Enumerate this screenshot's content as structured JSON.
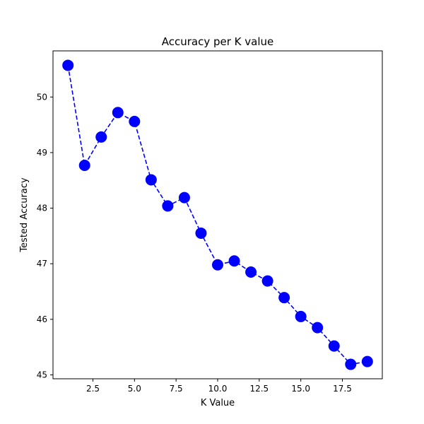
{
  "chart_data": {
    "type": "line",
    "title": "Accuracy per K value",
    "xlabel": "K Value",
    "ylabel": "Tested Accuracy",
    "xlim": [
      0.1,
      19.9
    ],
    "ylim": [
      44.93,
      50.83
    ],
    "xticks": [
      2.5,
      5.0,
      7.5,
      10.0,
      12.5,
      15.0,
      17.5
    ],
    "xtick_labels": [
      "2.5",
      "5.0",
      "7.5",
      "10.0",
      "12.5",
      "15.0",
      "17.5"
    ],
    "yticks": [
      45,
      46,
      47,
      48,
      49,
      50
    ],
    "ytick_labels": [
      "45",
      "46",
      "47",
      "48",
      "49",
      "50"
    ],
    "grid": false,
    "legend": "none",
    "series": [
      {
        "color": "#0000ff",
        "line_style": "dashed",
        "marker": "circle",
        "x": [
          1,
          2,
          3,
          4,
          5,
          6,
          7,
          8,
          9,
          10,
          11,
          12,
          13,
          14,
          15,
          16,
          17,
          18,
          19
        ],
        "y": [
          50.57,
          48.77,
          49.28,
          49.72,
          49.56,
          48.51,
          48.04,
          48.19,
          47.55,
          46.98,
          47.05,
          46.85,
          46.69,
          46.39,
          46.05,
          45.85,
          45.52,
          45.19,
          45.24
        ]
      }
    ]
  }
}
